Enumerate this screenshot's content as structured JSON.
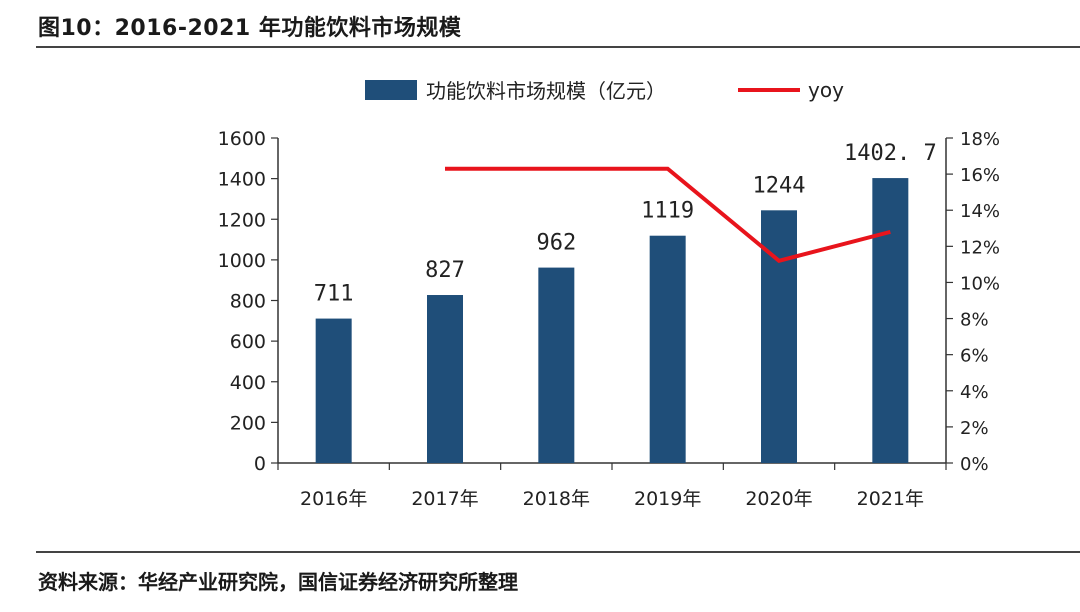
{
  "figure": {
    "title": "图10：2016-2021 年功能饮料市场规模",
    "source": "资料来源：华经产业研究院，国信证券经济研究所整理"
  },
  "colors": {
    "bar": "#1f4e79",
    "line": "#e8141c",
    "axis": "#333333"
  },
  "chart_data": {
    "type": "bar",
    "categories": [
      "2016年",
      "2017年",
      "2018年",
      "2019年",
      "2020年",
      "2021年"
    ],
    "series": [
      {
        "name": "功能饮料市场规模（亿元）",
        "type": "bar",
        "axis": "left",
        "values": [
          711,
          827,
          962,
          1119,
          1244,
          1402.7
        ],
        "data_labels": [
          "711",
          "827",
          "962",
          "1119",
          "1244",
          "1402. 7"
        ]
      },
      {
        "name": "yoy",
        "type": "line",
        "axis": "right",
        "values": [
          null,
          16.3,
          16.3,
          16.3,
          11.2,
          12.8
        ]
      }
    ],
    "ylim_left": [
      0,
      1600
    ],
    "yticks_left": [
      "0",
      "200",
      "400",
      "600",
      "800",
      "1000",
      "1200",
      "1400",
      "1600"
    ],
    "ylim_right": [
      0,
      18
    ],
    "yticks_right": [
      "0%",
      "2%",
      "4%",
      "6%",
      "8%",
      "10%",
      "12%",
      "14%",
      "16%",
      "18%"
    ],
    "legend_position": "top-center",
    "grid": false
  }
}
